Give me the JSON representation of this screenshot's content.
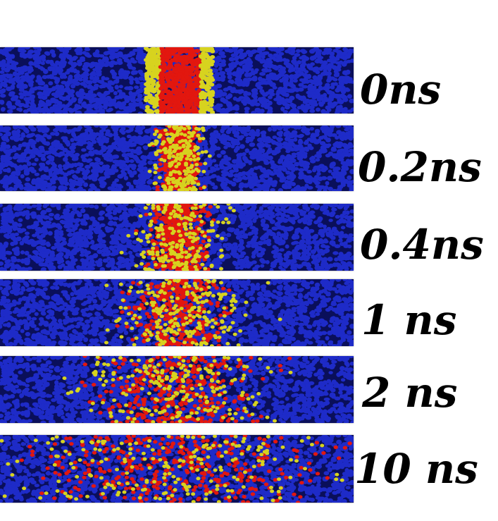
{
  "colors": {
    "blue": "#1e2bc8",
    "red": "#e2170f",
    "yellow": "#d7d31f",
    "dark": "#0a0f5a",
    "background": "#ffffff"
  },
  "frames": [
    {
      "label": "0ns"
    },
    {
      "label": "0.2ns"
    },
    {
      "label": "0.4ns"
    },
    {
      "label": "1 ns"
    },
    {
      "label": "2 ns"
    },
    {
      "label": "10 ns"
    }
  ]
}
